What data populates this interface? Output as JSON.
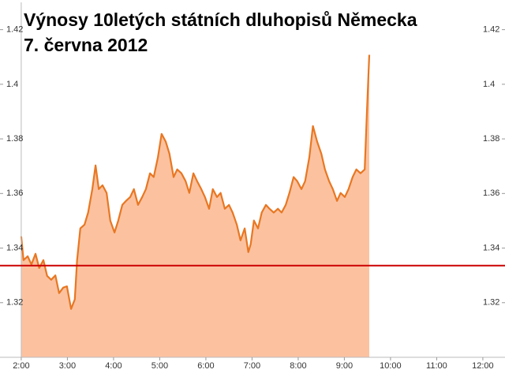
{
  "chart_data": {
    "type": "area",
    "title": [
      "Výnosy 10letých státních dluhopisů Německa",
      "7. června 2012"
    ],
    "x": [
      2.0,
      2.05,
      2.14,
      2.22,
      2.31,
      2.39,
      2.48,
      2.56,
      2.65,
      2.74,
      2.82,
      2.91,
      2.99,
      3.08,
      3.16,
      3.21,
      3.28,
      3.37,
      3.45,
      3.54,
      3.61,
      3.68,
      3.76,
      3.85,
      3.93,
      4.02,
      4.1,
      4.19,
      4.27,
      4.36,
      4.44,
      4.53,
      4.62,
      4.7,
      4.79,
      4.87,
      4.96,
      5.04,
      5.13,
      5.21,
      5.3,
      5.38,
      5.47,
      5.56,
      5.64,
      5.73,
      5.81,
      5.9,
      5.98,
      6.07,
      6.15,
      6.24,
      6.32,
      6.41,
      6.5,
      6.58,
      6.67,
      6.75,
      6.84,
      6.92,
      6.97,
      7.04,
      7.13,
      7.21,
      7.3,
      7.38,
      7.47,
      7.56,
      7.64,
      7.73,
      7.81,
      7.9,
      7.98,
      8.07,
      8.15,
      8.24,
      8.32,
      8.41,
      8.5,
      8.58,
      8.67,
      8.75,
      8.84,
      8.92,
      9.01,
      9.09,
      9.18,
      9.26,
      9.35,
      9.44,
      9.49,
      9.54
    ],
    "series": [
      {
        "color": "#e87722",
        "fill": "#fcc2a0",
        "values": [
          1.3443,
          1.3356,
          1.337,
          1.334,
          1.3379,
          1.3327,
          1.3356,
          1.3298,
          1.3284,
          1.33,
          1.3235,
          1.3255,
          1.326,
          1.3177,
          1.3212,
          1.3356,
          1.3472,
          1.3486,
          1.353,
          1.3616,
          1.3703,
          1.3616,
          1.363,
          1.3602,
          1.35,
          1.3457,
          1.35,
          1.3558,
          1.3573,
          1.3587,
          1.3616,
          1.3558,
          1.3587,
          1.3616,
          1.3674,
          1.366,
          1.3732,
          1.3818,
          1.379,
          1.3746,
          1.366,
          1.3688,
          1.3674,
          1.3645,
          1.3602,
          1.3674,
          1.3645,
          1.3616,
          1.3587,
          1.3544,
          1.3616,
          1.3587,
          1.3602,
          1.3544,
          1.3558,
          1.353,
          1.3486,
          1.3428,
          1.3472,
          1.3385,
          1.3414,
          1.3501,
          1.3472,
          1.353,
          1.3558,
          1.3544,
          1.353,
          1.3544,
          1.353,
          1.3558,
          1.3602,
          1.366,
          1.3645,
          1.3616,
          1.3645,
          1.3732,
          1.3847,
          1.379,
          1.3746,
          1.3688,
          1.3645,
          1.3616,
          1.3573,
          1.3602,
          1.3587,
          1.3616,
          1.366,
          1.3688,
          1.3674,
          1.3688,
          1.3905,
          1.4108
        ]
      }
    ],
    "reference_line": {
      "value": 1.3336,
      "color": "#cc0000"
    },
    "xlim": [
      1.54,
      12.48
    ],
    "xticks": [
      {
        "value": 2,
        "label": "2:00"
      },
      {
        "value": 3,
        "label": "3:00"
      },
      {
        "value": 4,
        "label": "4:00"
      },
      {
        "value": 5,
        "label": "5:00"
      },
      {
        "value": 6,
        "label": "6:00"
      },
      {
        "value": 7,
        "label": "7:00"
      },
      {
        "value": 8,
        "label": "8:00"
      },
      {
        "value": 9,
        "label": "9:00"
      },
      {
        "value": 10,
        "label": "10:00"
      },
      {
        "value": 11,
        "label": "11:00"
      },
      {
        "value": 12,
        "label": "12:00"
      }
    ],
    "ylim": [
      1.3,
      1.43
    ],
    "yticks": [
      1.32,
      1.34,
      1.36,
      1.38,
      1.4,
      1.42
    ]
  }
}
